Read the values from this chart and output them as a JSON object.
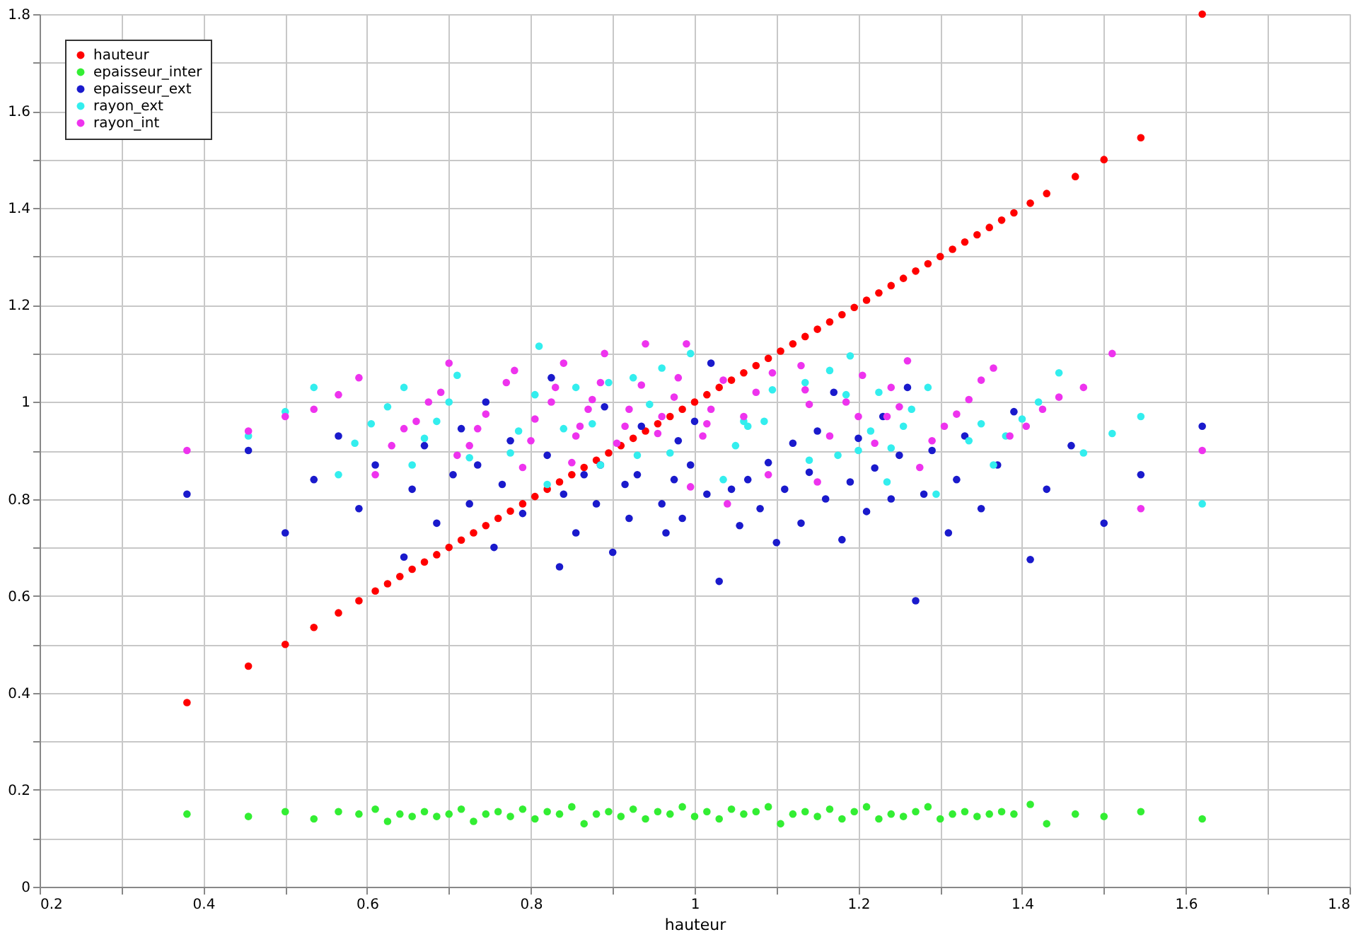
{
  "chart_data": {
    "type": "scatter",
    "xlabel": "hauteur",
    "xlim": [
      0.2,
      1.8
    ],
    "ylim": [
      0,
      1.8
    ],
    "xticks": [
      0.2,
      {
        "value": 0.3,
        "label": null
      },
      0.4,
      {
        "value": 0.5,
        "label": null
      },
      0.6,
      {
        "value": 0.7,
        "label": null
      },
      0.8,
      {
        "value": 0.9,
        "label": null
      },
      1,
      {
        "value": 1.1,
        "label": null
      },
      1.2,
      {
        "value": 1.3,
        "label": null
      },
      1.4,
      {
        "value": 1.5,
        "label": null
      },
      1.6,
      {
        "value": 1.7,
        "label": null
      },
      1.8
    ],
    "yticks": [
      0,
      {
        "value": 0.1,
        "label": null
      },
      0.2,
      {
        "value": 0.3,
        "label": null
      },
      0.4,
      {
        "value": 0.5,
        "label": null
      },
      0.6,
      {
        "value": 0.7,
        "label": null
      },
      0.8,
      {
        "value": 0.9,
        "label": null
      },
      1,
      {
        "value": 1.1,
        "label": null
      },
      1.2,
      {
        "value": 1.3,
        "label": null
      },
      1.4,
      {
        "value": 1.5,
        "label": null
      },
      1.6,
      {
        "value": 1.7,
        "label": null
      },
      1.8
    ],
    "grid": true,
    "legend": "top left",
    "marker": "circle",
    "series": [
      {
        "name": "hauteur",
        "color": "#ff0000",
        "x": [
          0.38,
          0.455,
          0.5,
          0.535,
          0.565,
          0.59,
          0.61,
          0.625,
          0.64,
          0.655,
          0.67,
          0.685,
          0.7,
          0.715,
          0.73,
          0.745,
          0.76,
          0.775,
          0.79,
          0.805,
          0.82,
          0.835,
          0.85,
          0.865,
          0.88,
          0.895,
          0.91,
          0.925,
          0.94,
          0.955,
          0.97,
          0.985,
          1.0,
          1.015,
          1.03,
          1.045,
          1.06,
          1.075,
          1.09,
          1.105,
          1.12,
          1.135,
          1.15,
          1.165,
          1.18,
          1.195,
          1.21,
          1.225,
          1.24,
          1.255,
          1.27,
          1.285,
          1.3,
          1.315,
          1.33,
          1.345,
          1.36,
          1.375,
          1.39,
          1.41,
          1.43,
          1.465,
          1.5,
          1.545,
          1.62
        ],
        "values": [
          0.38,
          0.455,
          0.5,
          0.535,
          0.565,
          0.59,
          0.61,
          0.625,
          0.64,
          0.655,
          0.67,
          0.685,
          0.7,
          0.715,
          0.73,
          0.745,
          0.76,
          0.775,
          0.79,
          0.805,
          0.82,
          0.835,
          0.85,
          0.865,
          0.88,
          0.895,
          0.91,
          0.925,
          0.94,
          0.955,
          0.97,
          0.985,
          1.0,
          1.015,
          1.03,
          1.045,
          1.06,
          1.075,
          1.09,
          1.105,
          1.12,
          1.135,
          1.15,
          1.165,
          1.18,
          1.195,
          1.21,
          1.225,
          1.24,
          1.255,
          1.27,
          1.285,
          1.3,
          1.315,
          1.33,
          1.345,
          1.36,
          1.375,
          1.39,
          1.41,
          1.43,
          1.465,
          1.5,
          1.545,
          1.8
        ]
      },
      {
        "name": "epaisseur_inter",
        "color": "#33ee33",
        "x": [
          0.38,
          0.455,
          0.5,
          0.535,
          0.565,
          0.59,
          0.61,
          0.625,
          0.64,
          0.655,
          0.67,
          0.685,
          0.7,
          0.715,
          0.73,
          0.745,
          0.76,
          0.775,
          0.79,
          0.805,
          0.82,
          0.835,
          0.85,
          0.865,
          0.88,
          0.895,
          0.91,
          0.925,
          0.94,
          0.955,
          0.97,
          0.985,
          1.0,
          1.015,
          1.03,
          1.045,
          1.06,
          1.075,
          1.09,
          1.105,
          1.12,
          1.135,
          1.15,
          1.165,
          1.18,
          1.195,
          1.21,
          1.225,
          1.24,
          1.255,
          1.27,
          1.285,
          1.3,
          1.315,
          1.33,
          1.345,
          1.36,
          1.375,
          1.39,
          1.41,
          1.43,
          1.465,
          1.5,
          1.545,
          1.62
        ],
        "values": [
          0.15,
          0.145,
          0.155,
          0.14,
          0.155,
          0.15,
          0.16,
          0.135,
          0.15,
          0.145,
          0.155,
          0.145,
          0.15,
          0.16,
          0.135,
          0.15,
          0.155,
          0.145,
          0.16,
          0.14,
          0.155,
          0.15,
          0.165,
          0.13,
          0.15,
          0.155,
          0.145,
          0.16,
          0.14,
          0.155,
          0.15,
          0.165,
          0.145,
          0.155,
          0.14,
          0.16,
          0.15,
          0.155,
          0.165,
          0.13,
          0.15,
          0.155,
          0.145,
          0.16,
          0.14,
          0.155,
          0.165,
          0.14,
          0.15,
          0.145,
          0.155,
          0.165,
          0.14,
          0.15,
          0.155,
          0.145,
          0.15,
          0.155,
          0.15,
          0.17,
          0.13,
          0.15,
          0.145,
          0.155,
          0.14
        ]
      },
      {
        "name": "epaisseur_ext",
        "color": "#1a1acc",
        "x": [
          0.38,
          0.455,
          0.5,
          0.535,
          0.565,
          0.59,
          0.61,
          0.645,
          0.655,
          0.67,
          0.685,
          0.705,
          0.715,
          0.725,
          0.735,
          0.745,
          0.755,
          0.765,
          0.775,
          0.79,
          0.82,
          0.825,
          0.835,
          0.84,
          0.855,
          0.865,
          0.88,
          0.885,
          0.89,
          0.9,
          0.915,
          0.92,
          0.93,
          0.935,
          0.96,
          0.965,
          0.975,
          0.98,
          0.985,
          0.995,
          1.0,
          1.015,
          1.02,
          1.03,
          1.045,
          1.055,
          1.065,
          1.08,
          1.09,
          1.1,
          1.11,
          1.12,
          1.13,
          1.14,
          1.15,
          1.16,
          1.17,
          1.18,
          1.19,
          1.2,
          1.21,
          1.22,
          1.23,
          1.24,
          1.25,
          1.26,
          1.27,
          1.28,
          1.29,
          1.31,
          1.32,
          1.33,
          1.35,
          1.37,
          1.39,
          1.41,
          1.43,
          1.46,
          1.5,
          1.545,
          1.62
        ],
        "values": [
          0.81,
          0.9,
          0.73,
          0.84,
          0.93,
          0.78,
          0.87,
          0.68,
          0.82,
          0.91,
          0.75,
          0.85,
          0.945,
          0.79,
          0.87,
          1.0,
          0.7,
          0.83,
          0.92,
          0.77,
          0.89,
          1.05,
          0.66,
          0.81,
          0.73,
          0.85,
          0.79,
          0.87,
          0.99,
          0.69,
          0.83,
          0.76,
          0.85,
          0.95,
          0.79,
          0.73,
          0.84,
          0.92,
          0.76,
          0.87,
          0.96,
          0.81,
          1.08,
          0.63,
          0.82,
          0.745,
          0.84,
          0.78,
          0.875,
          0.71,
          0.82,
          0.915,
          0.75,
          0.855,
          0.94,
          0.8,
          1.02,
          0.716,
          0.835,
          0.925,
          0.774,
          0.864,
          0.97,
          0.8,
          0.89,
          1.03,
          0.59,
          0.81,
          0.9,
          0.73,
          0.84,
          0.93,
          0.78,
          0.87,
          0.98,
          0.675,
          0.82,
          0.91,
          0.75,
          0.85,
          0.95
        ]
      },
      {
        "name": "rayon_ext",
        "color": "#33eeee",
        "x": [
          0.455,
          0.5,
          0.535,
          0.565,
          0.585,
          0.605,
          0.625,
          0.645,
          0.655,
          0.67,
          0.685,
          0.7,
          0.71,
          0.725,
          0.775,
          0.785,
          0.805,
          0.81,
          0.82,
          0.84,
          0.855,
          0.875,
          0.885,
          0.895,
          0.925,
          0.93,
          0.945,
          0.96,
          0.97,
          0.995,
          1.035,
          1.05,
          1.06,
          1.065,
          1.085,
          1.095,
          1.135,
          1.14,
          1.165,
          1.175,
          1.185,
          1.19,
          1.2,
          1.215,
          1.225,
          1.235,
          1.24,
          1.255,
          1.265,
          1.285,
          1.295,
          1.335,
          1.35,
          1.365,
          1.38,
          1.4,
          1.42,
          1.445,
          1.475,
          1.51,
          1.545,
          1.62
        ],
        "values": [
          0.93,
          0.98,
          1.03,
          0.85,
          0.915,
          0.955,
          0.99,
          1.03,
          0.87,
          0.925,
          0.96,
          1.0,
          1.055,
          0.885,
          0.895,
          0.94,
          1.015,
          1.115,
          0.83,
          0.945,
          1.03,
          0.955,
          0.87,
          1.04,
          1.05,
          0.89,
          0.995,
          1.07,
          0.895,
          1.1,
          0.84,
          0.91,
          0.96,
          0.95,
          0.96,
          1.025,
          1.04,
          0.88,
          1.065,
          0.89,
          1.015,
          1.095,
          0.9,
          0.94,
          1.02,
          0.835,
          0.905,
          0.95,
          0.985,
          1.03,
          0.81,
          0.92,
          0.955,
          0.87,
          0.93,
          0.965,
          1.0,
          1.06,
          0.895,
          0.935,
          0.97,
          0.79
        ]
      },
      {
        "name": "rayon_int",
        "color": "#ee33ee",
        "x": [
          0.38,
          0.455,
          0.5,
          0.535,
          0.565,
          0.59,
          0.61,
          0.63,
          0.645,
          0.66,
          0.675,
          0.69,
          0.7,
          0.71,
          0.725,
          0.735,
          0.745,
          0.77,
          0.78,
          0.79,
          0.8,
          0.805,
          0.825,
          0.83,
          0.84,
          0.85,
          0.855,
          0.86,
          0.87,
          0.875,
          0.885,
          0.89,
          0.905,
          0.915,
          0.92,
          0.935,
          0.94,
          0.955,
          0.96,
          0.975,
          0.98,
          0.99,
          0.995,
          1.01,
          1.015,
          1.02,
          1.035,
          1.04,
          1.06,
          1.075,
          1.09,
          1.095,
          1.13,
          1.135,
          1.14,
          1.15,
          1.165,
          1.185,
          1.2,
          1.205,
          1.22,
          1.235,
          1.24,
          1.25,
          1.26,
          1.275,
          1.29,
          1.305,
          1.32,
          1.335,
          1.35,
          1.365,
          1.385,
          1.405,
          1.425,
          1.445,
          1.475,
          1.51,
          1.545,
          1.62
        ],
        "values": [
          0.9,
          0.94,
          0.97,
          0.985,
          1.015,
          1.05,
          0.85,
          0.91,
          0.945,
          0.96,
          1.0,
          1.02,
          1.08,
          0.89,
          0.91,
          0.945,
          0.975,
          1.04,
          1.065,
          0.865,
          0.92,
          0.965,
          1.0,
          1.03,
          1.08,
          0.875,
          0.93,
          0.95,
          0.985,
          1.005,
          1.04,
          1.1,
          0.915,
          0.95,
          0.985,
          1.035,
          1.12,
          0.935,
          0.97,
          1.01,
          1.05,
          1.12,
          0.825,
          0.93,
          0.955,
          0.985,
          1.045,
          0.79,
          0.97,
          1.02,
          0.85,
          1.06,
          1.075,
          1.025,
          0.995,
          0.835,
          0.93,
          1.0,
          0.97,
          1.055,
          0.915,
          0.97,
          1.03,
          0.99,
          1.085,
          0.865,
          0.92,
          0.95,
          0.975,
          1.005,
          1.045,
          1.07,
          0.93,
          0.95,
          0.985,
          1.01,
          1.03,
          1.1,
          0.78,
          0.9
        ]
      }
    ]
  }
}
